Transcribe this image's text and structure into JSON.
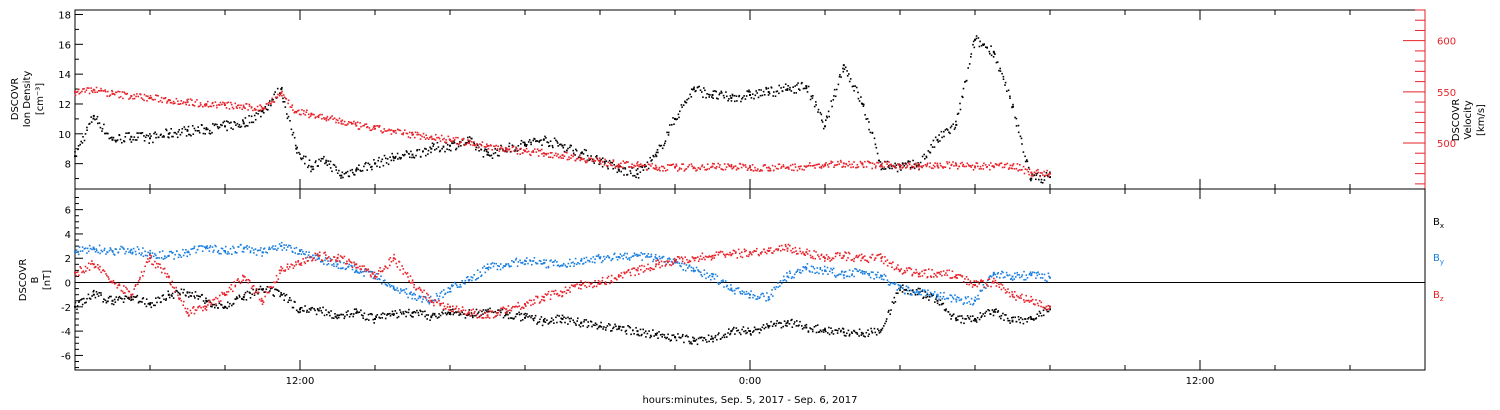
{
  "chart_data": [
    {
      "type": "scatter",
      "panel": "top",
      "ylabel_left": [
        "DSCOVR",
        "Ion Density",
        "[cm⁻³]"
      ],
      "ylabel_right": [
        "DSCOVR",
        "Velocity",
        "[km/s]"
      ],
      "y_left_ticks": [
        "8",
        "10",
        "12",
        "14",
        "16",
        "18"
      ],
      "y_left_ticks_values": [
        8,
        10,
        12,
        14,
        16,
        18
      ],
      "y_left_range": [
        6.3,
        18.3
      ],
      "y_right_ticks": [
        "500",
        "550",
        "600"
      ],
      "y_right_ticks_values": [
        500,
        550,
        600
      ],
      "y_right_range": [
        455,
        630
      ],
      "series": [
        {
          "axis": "left",
          "color": "#000000",
          "x": [
            6.0,
            6.5,
            7.0,
            7.5,
            8.0,
            8.5,
            9.0,
            9.5,
            10.0,
            10.5,
            11.0,
            11.5,
            11.9,
            12.3,
            12.7,
            13.1,
            13.5,
            14.0,
            14.5,
            15.0,
            15.5,
            16.0,
            16.5,
            17.0,
            17.5,
            18.0,
            18.5,
            19.0,
            19.5,
            20.0,
            20.5,
            21.0,
            21.5,
            22.0,
            22.5,
            23.0,
            23.5,
            24.0,
            24.5,
            25.0,
            25.5,
            26.0,
            26.5,
            27.0,
            27.5,
            28.0,
            28.5,
            29.0,
            29.5,
            30.0,
            30.5,
            31.0,
            31.5,
            32.0
          ],
          "y": [
            8.5,
            11.2,
            9.6,
            9.8,
            9.7,
            10.0,
            10.2,
            10.3,
            10.5,
            10.7,
            11.5,
            13.0,
            9.0,
            7.8,
            8.2,
            7.2,
            7.6,
            8.0,
            8.4,
            8.6,
            9.0,
            9.2,
            9.5,
            8.6,
            9.0,
            9.3,
            9.6,
            9.2,
            8.7,
            8.2,
            7.6,
            7.3,
            8.5,
            11.0,
            13.0,
            12.6,
            12.4,
            12.6,
            12.8,
            13.0,
            13.2,
            10.5,
            14.6,
            12.0,
            7.9,
            7.8,
            7.9,
            9.6,
            10.6,
            16.3,
            15.5,
            11.8,
            7.0,
            7.1
          ]
        },
        {
          "axis": "right",
          "color": "#e8222a",
          "x": [
            6.0,
            6.5,
            7.0,
            7.5,
            8.0,
            8.5,
            9.0,
            9.5,
            10.0,
            10.5,
            11.0,
            11.5,
            11.9,
            12.3,
            12.7,
            13.1,
            13.5,
            14.0,
            14.5,
            15.0,
            15.5,
            16.0,
            16.5,
            17.0,
            17.5,
            18.0,
            18.5,
            19.0,
            19.5,
            20.0,
            20.5,
            21.0,
            21.5,
            22.0,
            22.5,
            23.0,
            23.5,
            24.0,
            24.5,
            25.0,
            25.5,
            26.0,
            26.5,
            27.0,
            27.5,
            28.0,
            28.5,
            29.0,
            29.5,
            30.0,
            30.5,
            31.0,
            31.5,
            32.0
          ],
          "y": [
            550,
            552,
            548,
            546,
            544,
            542,
            540,
            538,
            537,
            535,
            534,
            549,
            530,
            528,
            524,
            521,
            517,
            514,
            511,
            508,
            506,
            503,
            500,
            497,
            494,
            492,
            490,
            488,
            485,
            482,
            479,
            478,
            476,
            476,
            476,
            477,
            477,
            476,
            476,
            476,
            477,
            478,
            480,
            479,
            478,
            478,
            477,
            478,
            478,
            477,
            477,
            478,
            471,
            470
          ]
        }
      ]
    },
    {
      "type": "scatter",
      "panel": "bottom",
      "ylabel_left": [
        "DSCOVR",
        "B",
        "[nT]"
      ],
      "y_ticks": [
        "-6",
        "-4",
        "-2",
        "0",
        "2",
        "4",
        "6"
      ],
      "y_ticks_values": [
        -6,
        -4,
        -2,
        0,
        2,
        4,
        6
      ],
      "y_range": [
        -7.2,
        7.7
      ],
      "zero_line": true,
      "legend": [
        {
          "label": "B",
          "sub": "x",
          "color": "#000000"
        },
        {
          "label": "B",
          "sub": "y",
          "color": "#1a7fe0"
        },
        {
          "label": "B",
          "sub": "z",
          "color": "#e8222a"
        }
      ],
      "series": [
        {
          "name": "Bx",
          "color": "#000000",
          "x": [
            6.0,
            6.5,
            7.0,
            7.5,
            8.0,
            8.5,
            9.0,
            9.5,
            10.0,
            10.5,
            11.0,
            11.5,
            12.0,
            12.5,
            13.0,
            13.5,
            14.0,
            14.5,
            15.0,
            15.5,
            16.0,
            16.5,
            17.0,
            17.5,
            18.0,
            18.5,
            19.0,
            19.5,
            20.0,
            20.5,
            21.0,
            21.5,
            22.0,
            22.5,
            23.0,
            23.5,
            24.0,
            24.5,
            25.0,
            25.5,
            26.0,
            26.5,
            27.0,
            27.5,
            28.0,
            28.5,
            29.0,
            29.5,
            30.0,
            30.5,
            31.0,
            31.5,
            32.0
          ],
          "y": [
            -2.0,
            -1.0,
            -1.5,
            -1.2,
            -1.8,
            -1.0,
            -0.8,
            -1.5,
            -2.0,
            -1.2,
            -0.6,
            -1.0,
            -2.2,
            -2.3,
            -2.7,
            -2.5,
            -3.0,
            -2.6,
            -2.5,
            -2.8,
            -2.5,
            -2.6,
            -2.4,
            -2.6,
            -2.9,
            -3.2,
            -3.0,
            -3.3,
            -3.6,
            -3.8,
            -4.0,
            -4.3,
            -4.5,
            -4.8,
            -4.6,
            -4.0,
            -4.0,
            -3.6,
            -3.3,
            -3.7,
            -3.9,
            -4.1,
            -4.2,
            -3.9,
            -0.5,
            -0.8,
            -1.5,
            -3.1,
            -3.0,
            -2.4,
            -3.2,
            -3.0,
            -2.2
          ]
        },
        {
          "name": "By",
          "color": "#1a7fe0",
          "x": [
            6.0,
            6.5,
            7.0,
            7.5,
            8.0,
            8.5,
            9.0,
            9.5,
            10.0,
            10.5,
            11.0,
            11.5,
            12.0,
            12.5,
            13.0,
            13.5,
            14.0,
            14.5,
            15.0,
            15.5,
            16.0,
            16.5,
            17.0,
            17.5,
            18.0,
            18.5,
            19.0,
            19.5,
            20.0,
            20.5,
            21.0,
            21.5,
            22.0,
            22.5,
            23.0,
            23.5,
            24.0,
            24.5,
            25.0,
            25.5,
            26.0,
            26.5,
            27.0,
            27.5,
            28.0,
            28.5,
            29.0,
            29.5,
            30.0,
            30.5,
            31.0,
            31.5,
            32.0
          ],
          "y": [
            2.5,
            2.8,
            2.6,
            2.7,
            2.4,
            2.2,
            2.5,
            2.9,
            2.6,
            2.8,
            2.5,
            3.0,
            2.6,
            2.0,
            1.5,
            1.0,
            0.5,
            -0.5,
            -1.0,
            -1.5,
            -0.5,
            0.2,
            1.2,
            1.5,
            1.8,
            1.6,
            1.4,
            1.8,
            2.0,
            2.1,
            2.2,
            2.0,
            1.7,
            1.0,
            0.5,
            -0.5,
            -1.0,
            -1.2,
            0.5,
            1.2,
            1.0,
            0.6,
            0.9,
            0.5,
            -0.5,
            -0.8,
            -1.0,
            -1.4,
            -1.5,
            0.8,
            0.5,
            0.6,
            0.4
          ]
        },
        {
          "name": "Bz",
          "color": "#e8222a",
          "x": [
            6.0,
            6.5,
            7.0,
            7.5,
            8.0,
            8.5,
            9.0,
            9.5,
            10.0,
            10.5,
            11.0,
            11.5,
            12.0,
            12.5,
            13.0,
            13.5,
            14.0,
            14.5,
            15.0,
            15.5,
            16.0,
            16.5,
            17.0,
            17.5,
            18.0,
            18.5,
            19.0,
            19.5,
            20.0,
            20.5,
            21.0,
            21.5,
            22.0,
            22.5,
            23.0,
            23.5,
            24.0,
            24.5,
            25.0,
            25.5,
            26.0,
            26.5,
            27.0,
            27.5,
            28.0,
            28.5,
            29.0,
            29.5,
            30.0,
            30.5,
            31.0,
            31.5,
            32.0
          ],
          "y": [
            0.8,
            1.5,
            0.0,
            -1.0,
            2.0,
            0.5,
            -2.5,
            -2.0,
            -1.0,
            0.5,
            -1.5,
            1.0,
            1.5,
            2.2,
            2.0,
            1.5,
            0.5,
            2.0,
            0.0,
            -1.5,
            -2.0,
            -2.5,
            -2.7,
            -2.2,
            -1.8,
            -1.2,
            -0.8,
            -0.2,
            0.0,
            0.5,
            1.0,
            1.5,
            1.8,
            2.0,
            2.2,
            2.3,
            2.5,
            2.6,
            2.8,
            2.5,
            2.0,
            2.2,
            2.0,
            2.0,
            1.0,
            0.7,
            0.8,
            0.6,
            -0.2,
            0.0,
            -1.0,
            -1.5,
            -2.0
          ]
        }
      ]
    }
  ],
  "x_axis": {
    "start_hour": 6,
    "end_hour": 42,
    "tick_labels": [
      "12:00",
      "0:00",
      "12:00"
    ],
    "tick_hours": [
      12,
      24,
      36
    ],
    "minor_tick_step_hours": 2,
    "caption": "hours:minutes, Sep.  5, 2017 - Sep.  6, 2017"
  }
}
